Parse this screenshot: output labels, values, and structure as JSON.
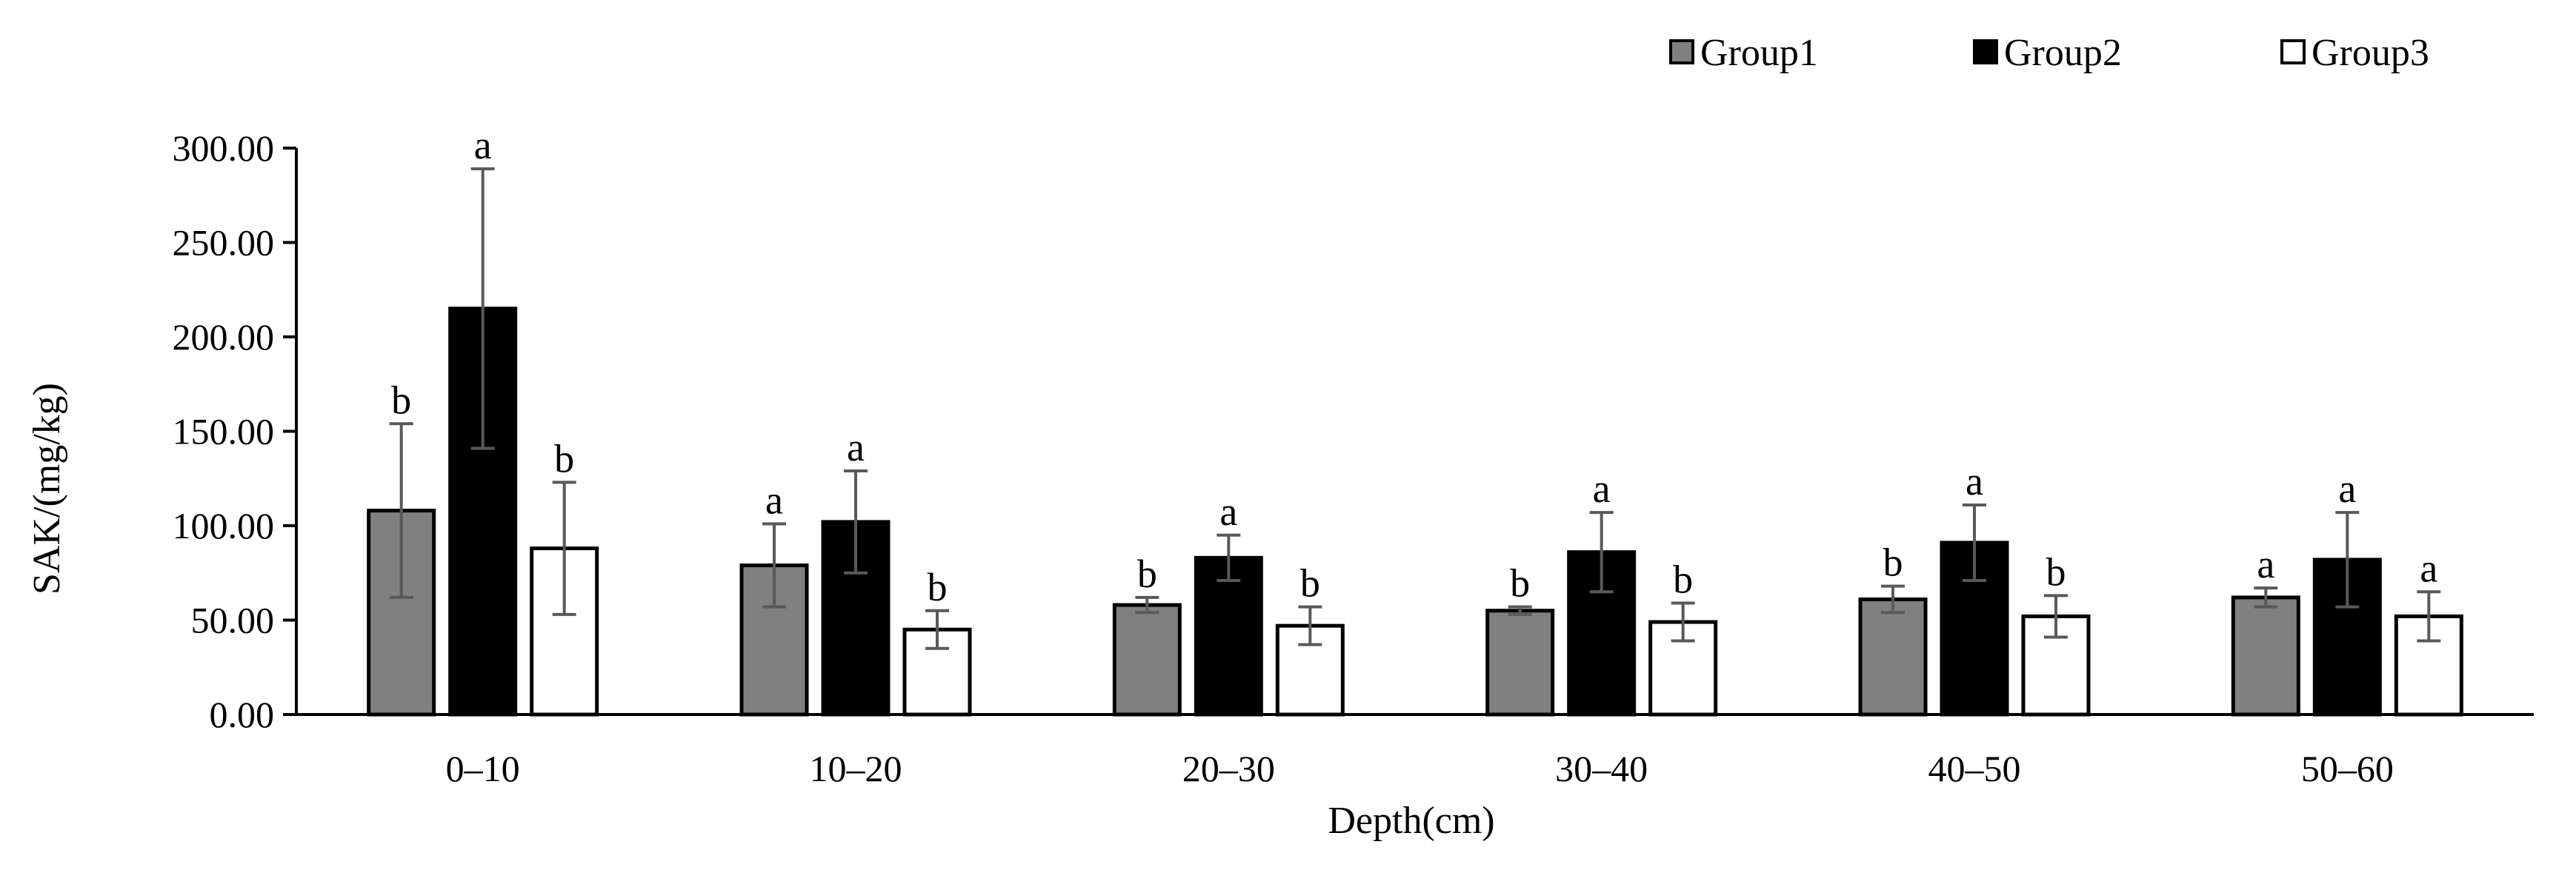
{
  "chart_data": {
    "type": "bar",
    "ylabel": "SAK/(mg/kg)",
    "xlabel": "Depth(cm)",
    "ylim": [
      0,
      300
    ],
    "y_ticks": [
      "0.00",
      "50.00",
      "100.00",
      "150.00",
      "200.00",
      "250.00",
      "300.00"
    ],
    "y_tick_values": [
      0,
      50,
      100,
      150,
      200,
      250,
      300
    ],
    "categories": [
      "0–10",
      "10–20",
      "20–30",
      "30–40",
      "40–50",
      "50–60"
    ],
    "legend_position": "top-right",
    "series": [
      {
        "name": "Group1",
        "color": "#808080",
        "values": [
          108,
          79,
          58,
          55,
          61,
          62
        ],
        "errors": [
          46,
          22,
          4,
          2,
          7,
          5
        ],
        "labels": [
          "b",
          "a",
          "b",
          "b",
          "b",
          "a"
        ]
      },
      {
        "name": "Group2",
        "color": "#000000",
        "values": [
          215,
          102,
          83,
          86,
          91,
          82
        ],
        "errors": [
          74,
          27,
          12,
          21,
          20,
          25
        ],
        "labels": [
          "a",
          "a",
          "a",
          "a",
          "a",
          "a"
        ]
      },
      {
        "name": "Group3",
        "color": "#ffffff",
        "values": [
          88,
          45,
          47,
          49,
          52,
          52
        ],
        "errors": [
          35,
          10,
          10,
          10,
          11,
          13
        ],
        "labels": [
          "b",
          "b",
          "b",
          "b",
          "b",
          "a"
        ]
      }
    ]
  }
}
